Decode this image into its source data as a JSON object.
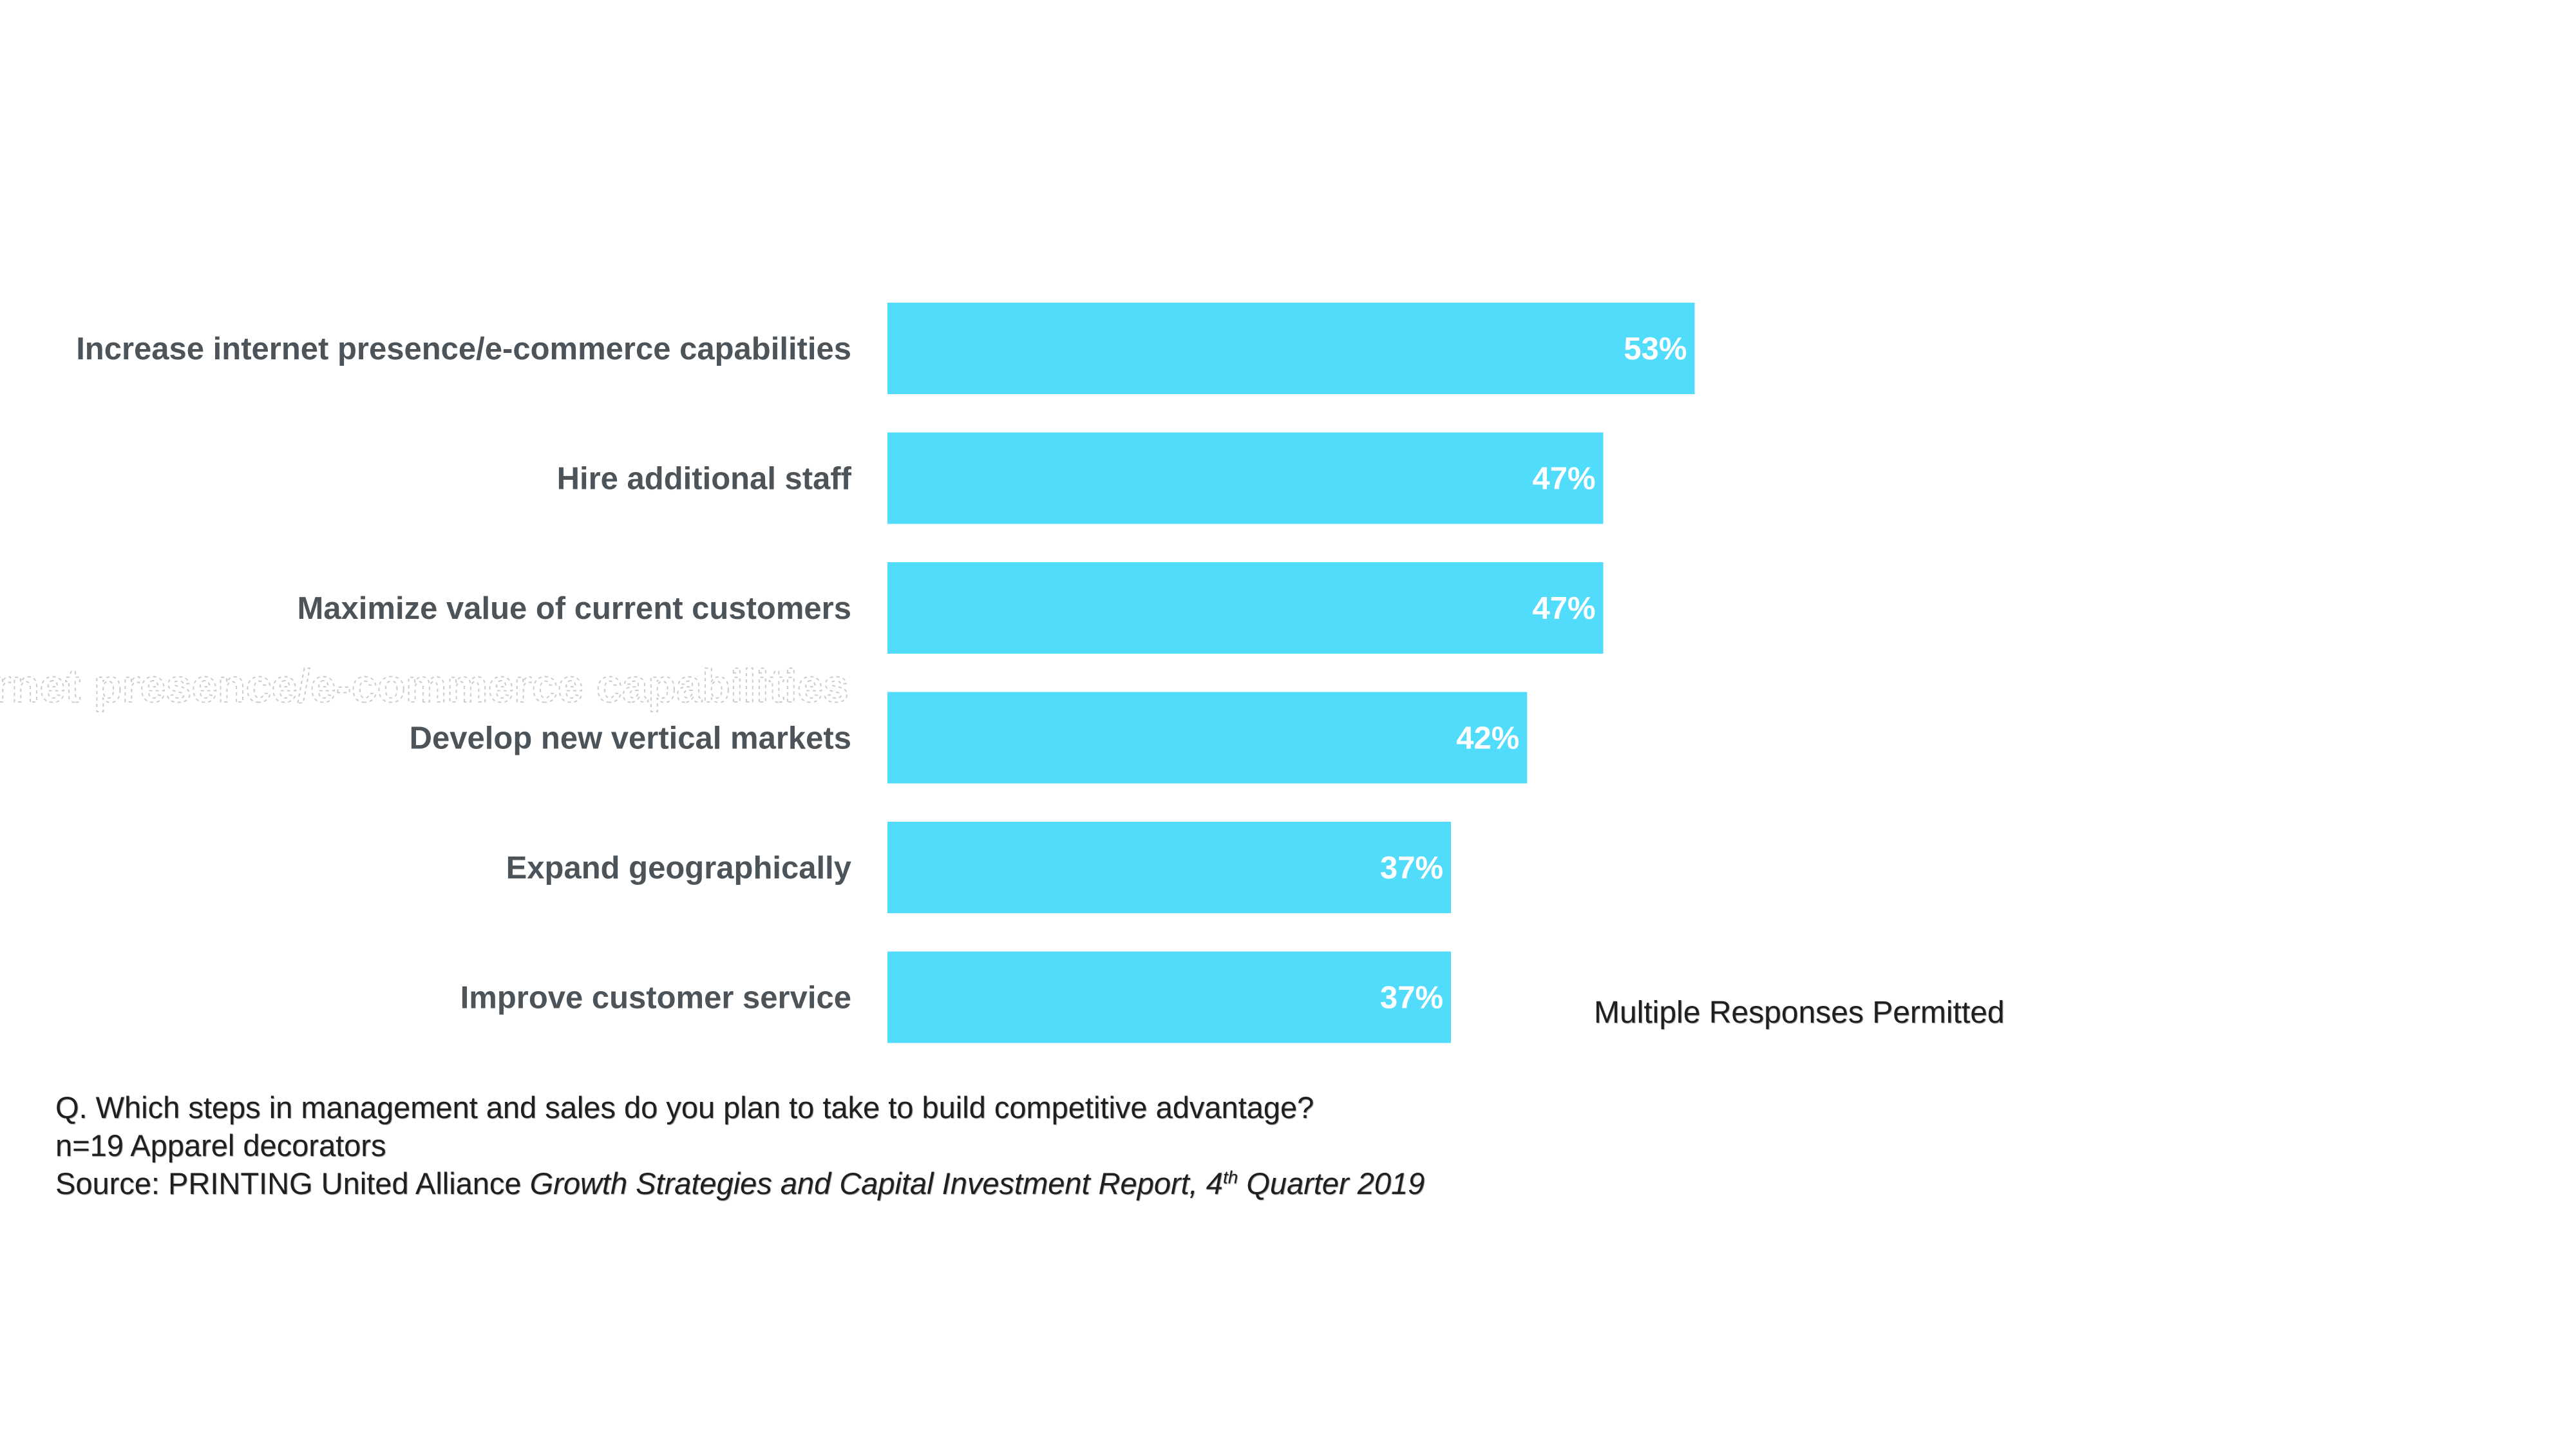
{
  "chart_data": {
    "type": "bar",
    "orientation": "horizontal",
    "categories": [
      "Increase internet presence/e-commerce capabilities",
      "Hire additional staff",
      "Maximize value of current customers",
      "Develop new vertical markets",
      "Expand geographically",
      "Improve customer service"
    ],
    "values": [
      53,
      47,
      47,
      42,
      37,
      37
    ],
    "value_labels": [
      "53%",
      "47%",
      "47%",
      "42%",
      "37%",
      "37%"
    ],
    "unit": "%",
    "xlim": [
      0,
      100
    ],
    "grid": false,
    "legend": "none",
    "bar_color": "#52dcfc",
    "label_color": "#4d5459",
    "value_label_color": "#ffffff"
  },
  "ghost_text": "Increase internet presence/e-commerce capabilities",
  "note": "Multiple Responses Permitted",
  "footer": {
    "question": "Q. Which steps in management and sales do you plan to take to build competitive advantage?",
    "sample": "n=19 Apparel decorators",
    "source_prefix": "Source: PRINTING United Alliance ",
    "source_title": "Growth Strategies and Capital Investment Report, 4",
    "source_sup": "th",
    "source_suffix": " Quarter 2019"
  }
}
